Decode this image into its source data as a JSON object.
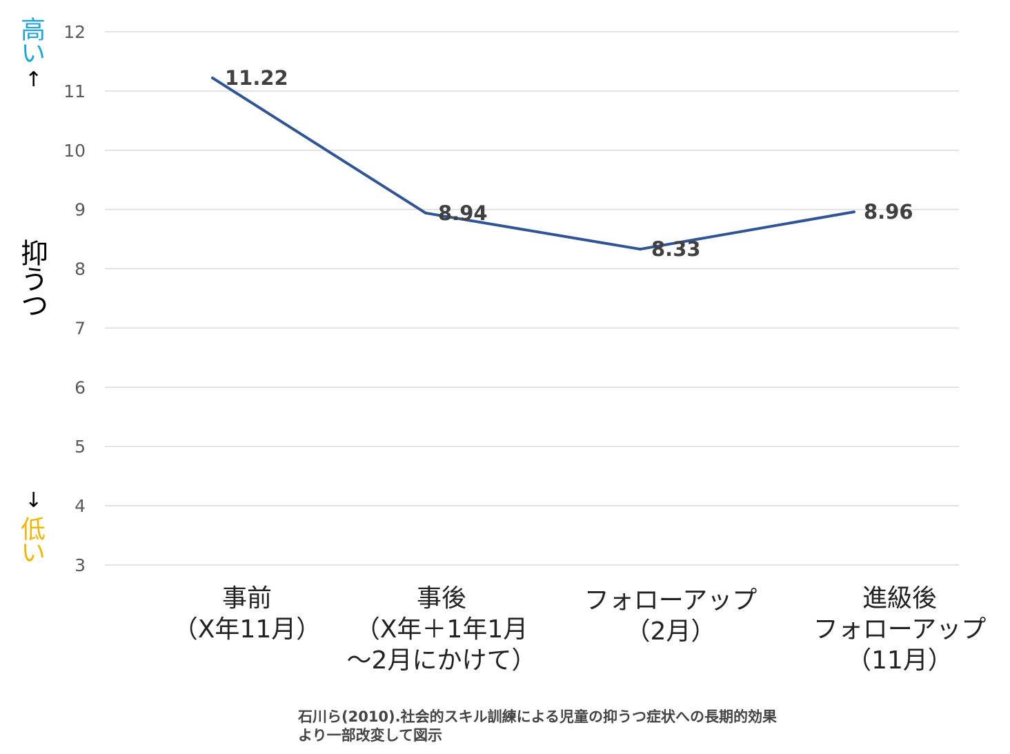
{
  "chart_data": {
    "type": "line",
    "categories": [
      [
        "事前",
        "（X年11月）"
      ],
      [
        "事後",
        "（X年＋1年1月",
        "～2月にかけて）"
      ],
      [
        "フォローアップ",
        "（2月）"
      ],
      [
        "進級後",
        "フォローアップ",
        "（11月）"
      ]
    ],
    "series": [
      {
        "values": [
          11.22,
          8.94,
          8.33,
          8.96
        ],
        "data_labels": [
          "11.22",
          "8.94",
          "8.33",
          "8.96"
        ],
        "color": "#2f5597"
      }
    ],
    "ylim": [
      3,
      12
    ],
    "yticks": [
      "3",
      "4",
      "5",
      "6",
      "7",
      "8",
      "9",
      "10",
      "11",
      "12"
    ],
    "ylabel": "抑うつ",
    "y_high_label": "高い",
    "y_low_label": "低い",
    "arrow_up": "↑",
    "arrow_down": "↓",
    "grid": true,
    "legend": "none",
    "colors": {
      "line": "#2f5597",
      "grid": "#d9d9d9",
      "tick": "#595959",
      "high": "#1aa6e0",
      "low": "#f2b705"
    }
  },
  "citation": {
    "line1": "石川ら(2010).社会的スキル訓練による児童の抑うつ症状への長期的効果",
    "line2": "より一部改変して図示"
  }
}
